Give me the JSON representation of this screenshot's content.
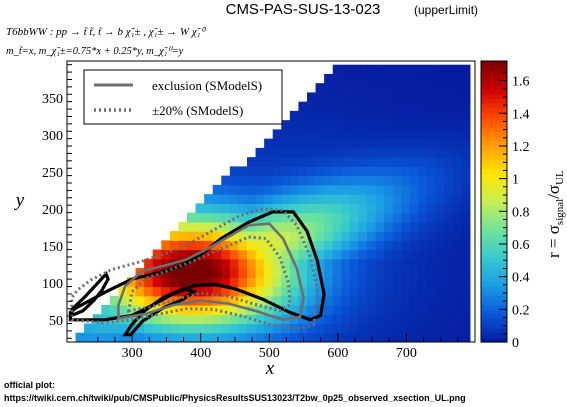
{
  "header": {
    "title": "CMS-PAS-SUS-13-023",
    "subtitle": "(upperLimit)",
    "process": "T6bbWW : pp → t̃ t̃, t̃ → b χ̃₁± , χ̃₁± → W χ̃₁⁰",
    "masses": "m_t̃=x, m_χ̃₁±=0.75*x + 0.25*y, m_χ̃₁⁰=y"
  },
  "footer": {
    "line1": "official plot:",
    "line2": "https://twiki.cern.ch/twiki/pub/CMSPublic/PhysicsResultsSUS13023/T2bw_0p25_observed_xsection_UL.png"
  },
  "colors": {
    "contour": "#000000",
    "smodels_line": "#6e6e6e",
    "frame": "#000000"
  },
  "chart_data": {
    "type": "heatmap",
    "title": "CMS-PAS-SUS-13-023",
    "xlabel": "x",
    "ylabel": "y",
    "zlabel": "r = σ_signal/σ_UL",
    "xlim": [
      205,
      800
    ],
    "ylim": [
      20,
      400
    ],
    "zlim": [
      0,
      1.72
    ],
    "x_ticks": [
      300,
      400,
      500,
      600,
      700
    ],
    "y_ticks": [
      50,
      100,
      150,
      200,
      250,
      300,
      350
    ],
    "z_ticks": [
      0,
      0.2,
      0.4,
      0.6,
      0.8,
      1,
      1.2,
      1.4,
      1.6
    ],
    "colormap": [
      "#051a9e",
      "#0a56d8",
      "#1b9be6",
      "#35c9cf",
      "#6fe39a",
      "#c7ee55",
      "#ffe600",
      "#ff9e00",
      "#ff4a00",
      "#cc0000",
      "#7a0000"
    ],
    "z_model": {
      "peak_value": 1.7,
      "peak_at": [
        385,
        115
      ],
      "grid_step_x": 12.5,
      "grid_step_y": 12.5
    },
    "legend": {
      "position": "top-left",
      "entries": [
        {
          "label": "exclusion (SModelS)",
          "style": "solid"
        },
        {
          "label": "±20% (SModelS)",
          "style": "dotted"
        }
      ]
    },
    "contours": {
      "official_exclusion": [
        [
          [
            210,
            50
          ],
          [
            260,
            50
          ],
          [
            300,
            56
          ],
          [
            330,
            70
          ],
          [
            360,
            85
          ],
          [
            390,
            96
          ],
          [
            420,
            98
          ],
          [
            450,
            92
          ],
          [
            490,
            78
          ],
          [
            530,
            60
          ],
          [
            560,
            50
          ],
          [
            575,
            56
          ],
          [
            580,
            85
          ],
          [
            570,
            130
          ],
          [
            555,
            170
          ],
          [
            535,
            196
          ],
          [
            505,
            196
          ],
          [
            470,
            182
          ],
          [
            430,
            160
          ],
          [
            400,
            138
          ],
          [
            370,
            122
          ],
          [
            340,
            114
          ],
          [
            300,
            105
          ],
          [
            262,
            88
          ],
          [
            238,
            76
          ],
          [
            218,
            66
          ],
          [
            210,
            60
          ]
        ],
        [
          [
            212,
            64
          ],
          [
            232,
            82
          ],
          [
            250,
            100
          ],
          [
            262,
            112
          ],
          [
            265,
            105
          ],
          [
            256,
            90
          ],
          [
            244,
            76
          ],
          [
            228,
            62
          ],
          [
            212,
            56
          ]
        ],
        [
          [
            290,
            30
          ],
          [
            300,
            44
          ],
          [
            318,
            62
          ],
          [
            345,
            80
          ],
          [
            375,
            92
          ],
          [
            390,
            88
          ],
          [
            375,
            78
          ],
          [
            345,
            66
          ],
          [
            315,
            48
          ],
          [
            298,
            30
          ]
        ]
      ],
      "smodels_exclusion": [
        [
          [
            280,
            52
          ],
          [
            320,
            58
          ],
          [
            360,
            70
          ],
          [
            400,
            76
          ],
          [
            440,
            72
          ],
          [
            480,
            62
          ],
          [
            520,
            50
          ],
          [
            545,
            54
          ],
          [
            550,
            80
          ],
          [
            540,
            120
          ],
          [
            520,
            160
          ],
          [
            500,
            180
          ],
          [
            470,
            178
          ],
          [
            440,
            162
          ],
          [
            410,
            146
          ],
          [
            380,
            132
          ],
          [
            350,
            124
          ],
          [
            315,
            116
          ],
          [
            290,
            96
          ],
          [
            280,
            70
          ]
        ]
      ],
      "smodels_band_upper": [
        [
          [
            212,
            50
          ],
          [
            262,
            46
          ],
          [
            300,
            50
          ],
          [
            340,
            58
          ],
          [
            380,
            65
          ],
          [
            420,
            64
          ],
          [
            460,
            55
          ],
          [
            500,
            44
          ],
          [
            545,
            38
          ],
          [
            565,
            44
          ],
          [
            570,
            90
          ],
          [
            560,
            135
          ],
          [
            540,
            178
          ],
          [
            520,
            198
          ],
          [
            490,
            200
          ],
          [
            455,
            190
          ],
          [
            420,
            172
          ],
          [
            385,
            154
          ],
          [
            350,
            140
          ],
          [
            310,
            128
          ],
          [
            270,
            118
          ],
          [
            240,
            104
          ],
          [
            220,
            90
          ],
          [
            212,
            80
          ]
        ]
      ],
      "smodels_band_lower": [
        [
          [
            295,
            62
          ],
          [
            330,
            68
          ],
          [
            365,
            78
          ],
          [
            400,
            86
          ],
          [
            440,
            82
          ],
          [
            475,
            72
          ],
          [
            515,
            62
          ],
          [
            530,
            70
          ],
          [
            528,
            100
          ],
          [
            515,
            135
          ],
          [
            495,
            160
          ],
          [
            470,
            162
          ],
          [
            440,
            150
          ],
          [
            410,
            138
          ],
          [
            380,
            126
          ],
          [
            350,
            116
          ],
          [
            320,
            106
          ],
          [
            300,
            88
          ]
        ]
      ]
    }
  }
}
